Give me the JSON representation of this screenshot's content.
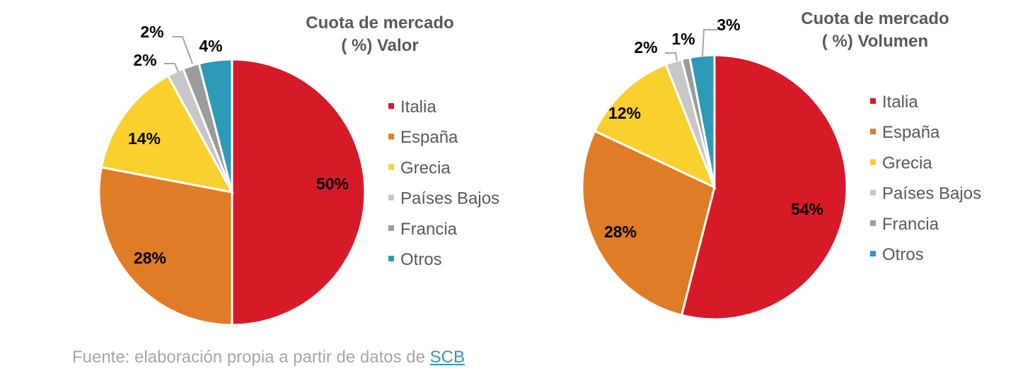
{
  "chart_data": [
    {
      "type": "pie",
      "title_line1": "Cuota de mercado",
      "title_line2": "( %) Valor",
      "categories": [
        "Italia",
        "España",
        "Grecia",
        "Países Bajos",
        "Francia",
        "Otros"
      ],
      "values": [
        50,
        28,
        14,
        2,
        2,
        4
      ],
      "labels": [
        "50%",
        "28%",
        "14%",
        "2%",
        "2%",
        "4%"
      ],
      "colors": [
        "#d71a28",
        "#e07b26",
        "#f9d02e",
        "#c7c7c7",
        "#9b9b9b",
        "#2e9ab7"
      ],
      "legend_position": "right"
    },
    {
      "type": "pie",
      "title_line1": "Cuota de mercado",
      "title_line2": "( %) Volumen",
      "categories": [
        "Italia",
        "España",
        "Grecia",
        "Países Bajos",
        "Francia",
        "Otros"
      ],
      "values": [
        54,
        28,
        12,
        2,
        1,
        3
      ],
      "labels": [
        "54%",
        "28%",
        "12%",
        "2%",
        "1%",
        "3%"
      ],
      "colors": [
        "#d71a28",
        "#e07b26",
        "#f9d02e",
        "#c7c7c7",
        "#9b9b9b",
        "#2e9ab7"
      ],
      "legend_position": "right"
    }
  ],
  "source": {
    "text": "Fuente: elaboración propia a partir de datos de ",
    "link": "SCB"
  }
}
